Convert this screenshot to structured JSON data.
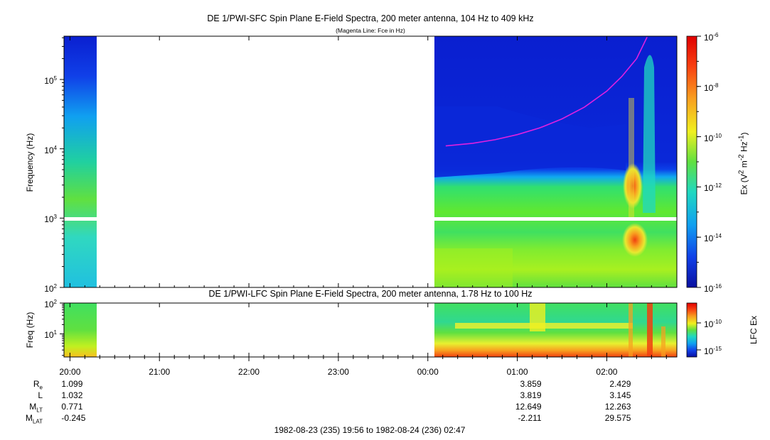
{
  "chart_data": [
    {
      "type": "heatmap",
      "title": "DE 1/PWI-SFC  Spin Plane E-Field Spectra, 200 meter antenna, 104 Hz to 409 kHz",
      "subtitle": "(Magenta Line: Fce in Hz)",
      "ylabel": "Frequency (Hz)",
      "yscale": "log",
      "ylim": [
        100,
        409000
      ],
      "yticks": [
        "10^2",
        "10^3",
        "10^4",
        "10^5"
      ],
      "colorbar": {
        "label": "Ex (V^2 m^-2 Hz^-1)",
        "scale": "log",
        "range": [
          1e-16,
          1e-06
        ],
        "ticks": [
          "10^-6",
          "10^-8",
          "10^-10",
          "10^-12",
          "10^-14",
          "10^-16"
        ]
      },
      "data_gaps": [
        {
          "from": "20:18",
          "to": "00:08"
        }
      ],
      "series": [
        {
          "name": "Fce",
          "color": "#e020e0",
          "x": [
            "00:12",
            "00:30",
            "00:45",
            "01:00",
            "01:15",
            "01:30",
            "01:45",
            "02:00",
            "02:10",
            "02:20",
            "02:27"
          ],
          "y": [
            11000,
            12000,
            13500,
            16000,
            20000,
            27000,
            40000,
            68000,
            110000,
            200000,
            409000
          ]
        }
      ]
    },
    {
      "type": "heatmap",
      "title": "DE 1/PWI-LFC  Spin Plane E-Field Spectra, 200 meter antenna, 1.78 Hz to 100 Hz",
      "ylabel": "Freq (Hz)",
      "yscale": "log",
      "ylim": [
        1.78,
        100
      ],
      "yticks": [
        "10^1",
        "10^2"
      ],
      "colorbar": {
        "label": "LFC Ex",
        "scale": "log",
        "ticks": [
          "10^-10",
          "10^-15"
        ]
      },
      "data_gaps": [
        {
          "from": "20:18",
          "to": "00:08"
        }
      ]
    }
  ],
  "time_axis": {
    "ticks": [
      "20:00",
      "21:00",
      "22:00",
      "23:00",
      "00:00",
      "01:00",
      "02:00"
    ],
    "range_label": "1982-08-23 (235) 19:56 to 1982-08-24 (236) 02:47"
  },
  "ephemeris": {
    "rows": [
      {
        "label": "R",
        "sub": "e",
        "values": [
          "1.099",
          "3.859",
          "2.429"
        ]
      },
      {
        "label": "L",
        "sub": "",
        "values": [
          "1.032",
          "3.819",
          "3.145"
        ]
      },
      {
        "label": "M",
        "sub": "LT",
        "values": [
          "0.771",
          "12.649",
          "12.263"
        ]
      },
      {
        "label": "M",
        "sub": "LAT",
        "values": [
          "-0.245",
          "-2.211",
          "29.575"
        ]
      }
    ]
  },
  "colors": {
    "background_spectrum": "#0a1fd0",
    "fce_line": "#e020e0"
  }
}
